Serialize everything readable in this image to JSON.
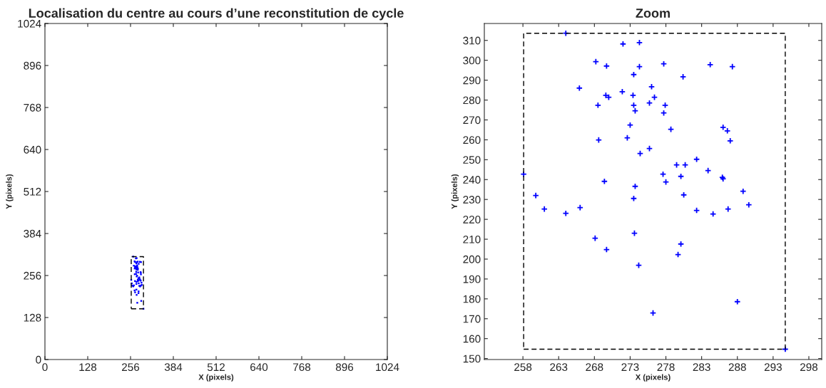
{
  "chart_data": [
    {
      "type": "scatter",
      "title": "Localisation du centre au cours d’une reconstitution de cycle",
      "xlabel": "X (pixels)",
      "ylabel": "Y (pixels)",
      "xlim": [
        0,
        1024
      ],
      "ylim": [
        0,
        1024
      ],
      "xticks": [
        0,
        128,
        256,
        384,
        512,
        640,
        768,
        896,
        1024
      ],
      "yticks": [
        0,
        128,
        256,
        384,
        512,
        640,
        768,
        896,
        1024
      ],
      "grid": false,
      "series": [
        {
          "color": "#0000ff",
          "marker": "square",
          "x": [
            264.0,
            268.2,
            269.7,
            272.0,
            274.3,
            274.3,
            273.5,
            265.9,
            269.6,
            270.0,
            271.9,
            273.4,
            273.5,
            273.7,
            268.5,
            273.0,
            272.6,
            268.6,
            274.4,
            275.7,
            276.0,
            276.4,
            null,
            277.7,
            277.9,
            277.7,
            278.7,
            280.4,
            284.2,
            287.3,
            286.0,
            286.6,
            287.0,
            279.5,
            280.7,
            282.3,
            283.9,
            280.1,
            277.6,
            278.0,
            280.5,
            286.0,
            285.9,
            288.8,
            289.6,
            286.7,
            284.6,
            282.3,
            273.7,
            273.5,
            269.4,
            258.1,
            259.8,
            261.0,
            264.0,
            266.0,
            268.1,
            269.7,
            273.6,
            274.2,
            280.1,
            279.7,
            276.2,
            288.0,
            294.7
          ],
          "values": [
            313.6,
            299.3,
            297.1,
            308.2,
            308.9,
            296.8,
            292.8,
            286.0,
            282.4,
            281.4,
            284.2,
            282.4,
            277.4,
            274.6,
            277.4,
            267.4,
            261.0,
            259.9,
            253.1,
            255.6,
            286.7,
            281.4,
            null,
            298.2,
            277.4,
            273.5,
            265.3,
            291.7,
            297.8,
            296.8,
            266.3,
            264.5,
            259.5,
            247.4,
            247.4,
            250.2,
            244.5,
            241.6,
            242.7,
            238.8,
            232.3,
            240.4,
            241.1,
            234.1,
            227.3,
            225.2,
            222.7,
            224.5,
            236.6,
            230.5,
            239.1,
            242.7,
            232.0,
            225.2,
            223.0,
            225.9,
            210.5,
            204.8,
            213.0,
            196.9,
            207.6,
            202.3,
            172.9,
            178.6,
            154.7
          ]
        }
      ]
    },
    {
      "type": "scatter",
      "title": "Zoom",
      "xlabel": "X (pixels)",
      "ylabel": "Y (pixels)",
      "xlim": [
        252.6,
        299.8
      ],
      "ylim": [
        149.5,
        318.5
      ],
      "xticks": [
        258,
        263,
        268,
        273,
        278,
        283,
        288,
        293,
        298
      ],
      "yticks": [
        150,
        160,
        170,
        180,
        190,
        200,
        210,
        220,
        230,
        240,
        250,
        260,
        270,
        280,
        290,
        300,
        310
      ],
      "grid": false,
      "series": [
        {
          "color": "#0000ff",
          "marker": "cross",
          "x": [
            264.0,
            268.2,
            269.7,
            272.0,
            274.3,
            274.3,
            273.5,
            265.9,
            269.6,
            270.0,
            271.9,
            273.4,
            273.5,
            273.7,
            268.5,
            273.0,
            272.6,
            268.6,
            274.4,
            275.7,
            276.0,
            276.4,
            275.7,
            277.7,
            277.9,
            277.7,
            278.7,
            280.4,
            284.2,
            287.3,
            286.0,
            286.6,
            287.0,
            279.5,
            280.7,
            282.3,
            283.9,
            280.1,
            277.6,
            278.0,
            280.5,
            286.0,
            285.9,
            288.8,
            289.6,
            286.7,
            284.6,
            282.3,
            273.7,
            273.5,
            269.4,
            258.1,
            259.8,
            261.0,
            264.0,
            266.0,
            268.1,
            269.7,
            273.6,
            274.2,
            280.1,
            279.7,
            276.2,
            288.0,
            294.7
          ],
          "values": [
            313.6,
            299.3,
            297.1,
            308.2,
            308.9,
            296.8,
            292.8,
            286.0,
            282.4,
            281.4,
            284.2,
            282.4,
            277.4,
            274.6,
            277.4,
            267.4,
            261.0,
            259.9,
            253.1,
            255.6,
            286.7,
            281.4,
            278.5,
            298.2,
            277.4,
            273.5,
            265.3,
            291.7,
            297.8,
            296.8,
            266.3,
            264.5,
            259.5,
            247.4,
            247.4,
            250.2,
            244.5,
            241.6,
            242.7,
            238.8,
            232.3,
            240.4,
            241.1,
            234.1,
            227.3,
            225.2,
            222.7,
            224.5,
            236.6,
            230.5,
            239.1,
            242.7,
            232.0,
            225.2,
            223.0,
            225.9,
            210.5,
            204.8,
            213.0,
            196.9,
            207.6,
            202.3,
            172.9,
            178.6,
            154.7
          ]
        }
      ]
    }
  ]
}
